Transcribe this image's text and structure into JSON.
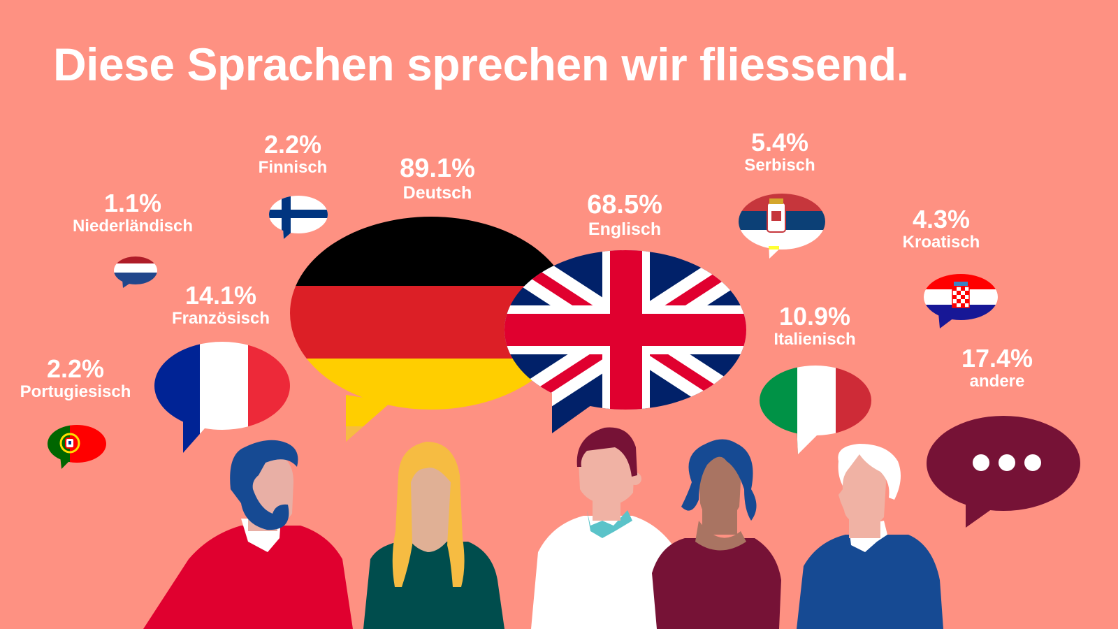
{
  "title": "Diese Sprachen sprechen wir fliessend.",
  "colors": {
    "background": "#FE9182",
    "text": "#FFFFFF",
    "maroon": "#761236",
    "navy": "#164A93",
    "red": "#E0002F",
    "green": "#004D4D",
    "blond": "#F6BC42"
  },
  "languages": [
    {
      "key": "niederlaendisch",
      "percent": "1.1%",
      "label": "Niederländisch",
      "flag": "netherlands-flag"
    },
    {
      "key": "finnisch",
      "percent": "2.2%",
      "label": "Finnisch",
      "flag": "finland-flag"
    },
    {
      "key": "deutsch",
      "percent": "89.1%",
      "label": "Deutsch",
      "flag": "germany-flag"
    },
    {
      "key": "englisch",
      "percent": "68.5%",
      "label": "Englisch",
      "flag": "uk-flag"
    },
    {
      "key": "serbisch",
      "percent": "5.4%",
      "label": "Serbisch",
      "flag": "serbia-flag"
    },
    {
      "key": "kroatisch",
      "percent": "4.3%",
      "label": "Kroatisch",
      "flag": "croatia-flag"
    },
    {
      "key": "franzoesisch",
      "percent": "14.1%",
      "label": "Französisch",
      "flag": "france-flag"
    },
    {
      "key": "italienisch",
      "percent": "10.9%",
      "label": "Italienisch",
      "flag": "italy-flag"
    },
    {
      "key": "portugiesisch",
      "percent": "2.2%",
      "label": "Portugiesisch",
      "flag": "portugal-flag"
    },
    {
      "key": "andere",
      "percent": "17.4%",
      "label": "andere",
      "flag": "ellipsis-icon"
    }
  ],
  "people": [
    "bearded-man-red-sweater",
    "blond-woman-green-top",
    "man-white-shirt",
    "woman-maroon-top",
    "grey-haired-man-blue-sweater"
  ]
}
